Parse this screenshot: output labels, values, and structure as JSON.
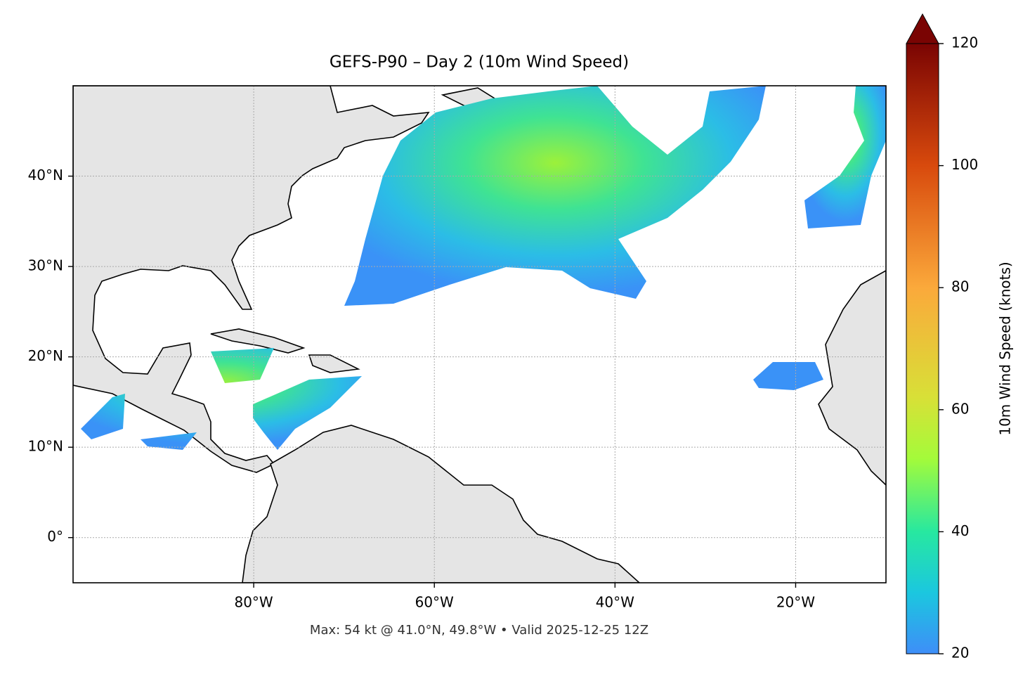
{
  "title": "GEFS-P90 – Day 2 (10m Wind Speed)",
  "footer": "Max: 54 kt @ 41.0°N, 49.8°W • Valid 2025-12-25 12Z",
  "map": {
    "xlim": [
      -100,
      -10
    ],
    "ylim": [
      -5,
      50
    ],
    "lon_ticks": [
      {
        "value": -80,
        "label": "80°W"
      },
      {
        "value": -60,
        "label": "60°W"
      },
      {
        "value": -40,
        "label": "40°W"
      },
      {
        "value": -20,
        "label": "20°W"
      }
    ],
    "lat_ticks": [
      {
        "value": 0,
        "label": "0°"
      },
      {
        "value": 10,
        "label": "10°N"
      },
      {
        "value": 20,
        "label": "20°N"
      },
      {
        "value": 30,
        "label": "30°N"
      },
      {
        "value": 40,
        "label": "40°N"
      }
    ]
  },
  "colorbar": {
    "label": "10m Wind Speed (knots)",
    "lim": [
      20,
      120
    ],
    "ticks": [
      20,
      40,
      60,
      80,
      100,
      120
    ]
  }
}
